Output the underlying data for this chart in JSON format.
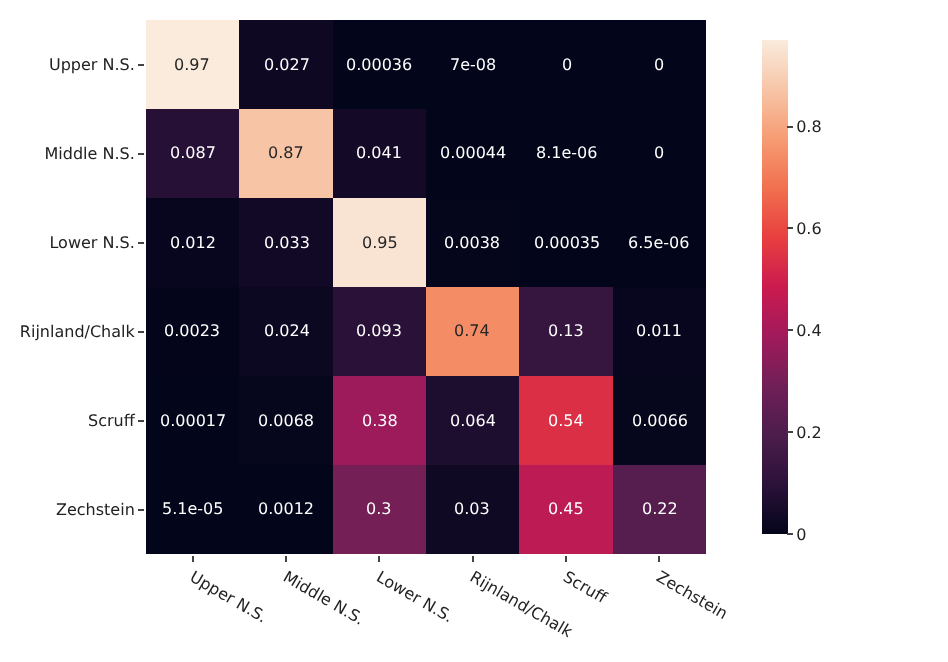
{
  "chart_data": {
    "type": "heatmap",
    "categories": [
      "Upper N.S.",
      "Middle N.S.",
      "Lower N.S.",
      "Rijnland/Chalk",
      "Scruff",
      "Zechstein"
    ],
    "y_categories": [
      "Upper N.S.",
      "Middle N.S.",
      "Lower N.S.",
      "Rijnland/Chalk",
      "Scruff",
      "Zechstein"
    ],
    "cells": [
      [
        0.97,
        0.027,
        0.00036,
        7e-08,
        0,
        0
      ],
      [
        0.087,
        0.87,
        0.041,
        0.00044,
        8.1e-06,
        0
      ],
      [
        0.012,
        0.033,
        0.95,
        0.0038,
        0.00035,
        6.5e-06
      ],
      [
        0.0023,
        0.024,
        0.093,
        0.74,
        0.13,
        0.011
      ],
      [
        0.00017,
        0.0068,
        0.38,
        0.064,
        0.54,
        0.0066
      ],
      [
        5.1e-05,
        0.0012,
        0.3,
        0.03,
        0.45,
        0.22
      ]
    ],
    "cell_labels": [
      [
        "0.97",
        "0.027",
        "0.00036",
        "7e-08",
        "0",
        "0"
      ],
      [
        "0.087",
        "0.87",
        "0.041",
        "0.00044",
        "8.1e-06",
        "0"
      ],
      [
        "0.012",
        "0.033",
        "0.95",
        "0.0038",
        "0.00035",
        "6.5e-06"
      ],
      [
        "0.0023",
        "0.024",
        "0.093",
        "0.74",
        "0.13",
        "0.011"
      ],
      [
        "0.00017",
        "0.0068",
        "0.38",
        "0.064",
        "0.54",
        "0.0066"
      ],
      [
        "5.1e-05",
        "0.0012",
        "0.3",
        "0.03",
        "0.45",
        "0.22"
      ]
    ],
    "clim": [
      0,
      0.97
    ],
    "cticks": [
      0,
      0.2,
      0.4,
      0.6,
      0.8
    ]
  }
}
